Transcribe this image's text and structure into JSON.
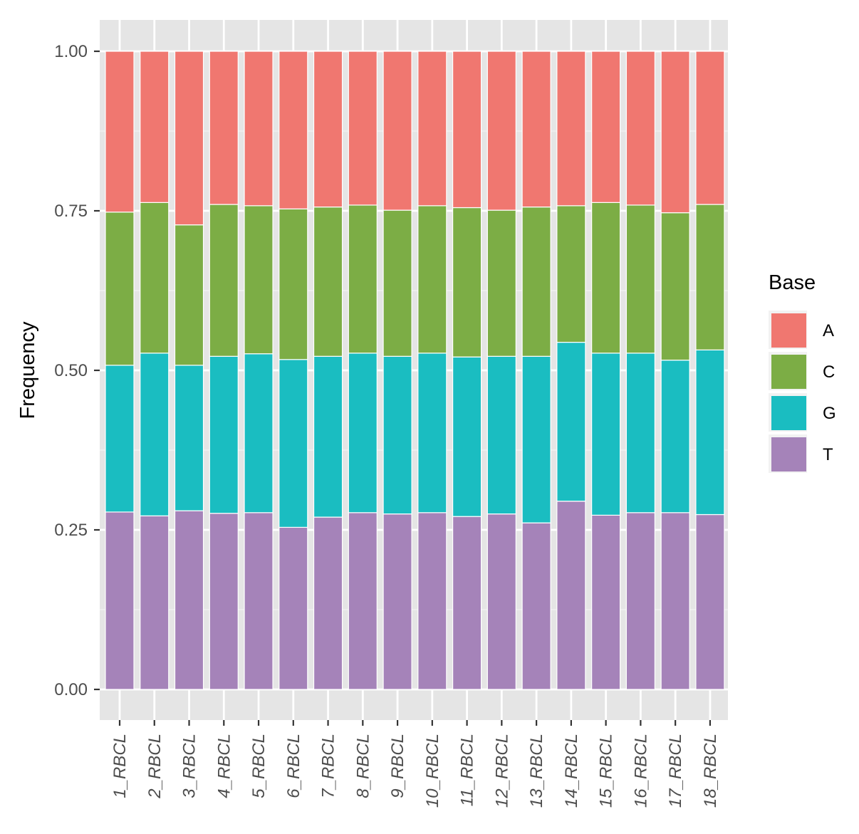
{
  "chart_data": {
    "type": "bar",
    "stacked": true,
    "title": "",
    "xlabel": "",
    "ylabel": "Frequency",
    "ylim": [
      0,
      1
    ],
    "yticks": [
      "0.00",
      "0.25",
      "0.50",
      "0.75",
      "1.00"
    ],
    "ytick_values": [
      0,
      0.25,
      0.5,
      0.75,
      1.0
    ],
    "grid": true,
    "legend": {
      "title": "Base",
      "position": "right"
    },
    "categories": [
      "1_RBCL",
      "2_RBCL",
      "3_RBCL",
      "4_RBCL",
      "5_RBCL",
      "6_RBCL",
      "7_RBCL",
      "8_RBCL",
      "9_RBCL",
      "10_RBCL",
      "11_RBCL",
      "12_RBCL",
      "13_RBCL",
      "14_RBCL",
      "15_RBCL",
      "16_RBCL",
      "17_RBCL",
      "18_RBCL"
    ],
    "series": [
      {
        "name": "T",
        "color": "#a583b9",
        "values": [
          0.278,
          0.272,
          0.28,
          0.276,
          0.277,
          0.254,
          0.27,
          0.277,
          0.275,
          0.277,
          0.271,
          0.275,
          0.261,
          0.295,
          0.273,
          0.277,
          0.277,
          0.274
        ]
      },
      {
        "name": "G",
        "color": "#1abdc1",
        "values": [
          0.23,
          0.255,
          0.228,
          0.246,
          0.249,
          0.263,
          0.252,
          0.25,
          0.247,
          0.25,
          0.25,
          0.247,
          0.261,
          0.249,
          0.254,
          0.25,
          0.239,
          0.258
        ]
      },
      {
        "name": "C",
        "color": "#7cad45",
        "values": [
          0.24,
          0.236,
          0.22,
          0.238,
          0.232,
          0.236,
          0.234,
          0.232,
          0.229,
          0.231,
          0.234,
          0.229,
          0.234,
          0.214,
          0.236,
          0.232,
          0.231,
          0.228
        ]
      },
      {
        "name": "A",
        "color": "#f07770",
        "values": [
          0.252,
          0.237,
          0.272,
          0.24,
          0.242,
          0.247,
          0.244,
          0.241,
          0.249,
          0.242,
          0.245,
          0.249,
          0.244,
          0.242,
          0.237,
          0.241,
          0.253,
          0.24
        ]
      }
    ],
    "legend_order": [
      "A",
      "C",
      "G",
      "T"
    ]
  }
}
